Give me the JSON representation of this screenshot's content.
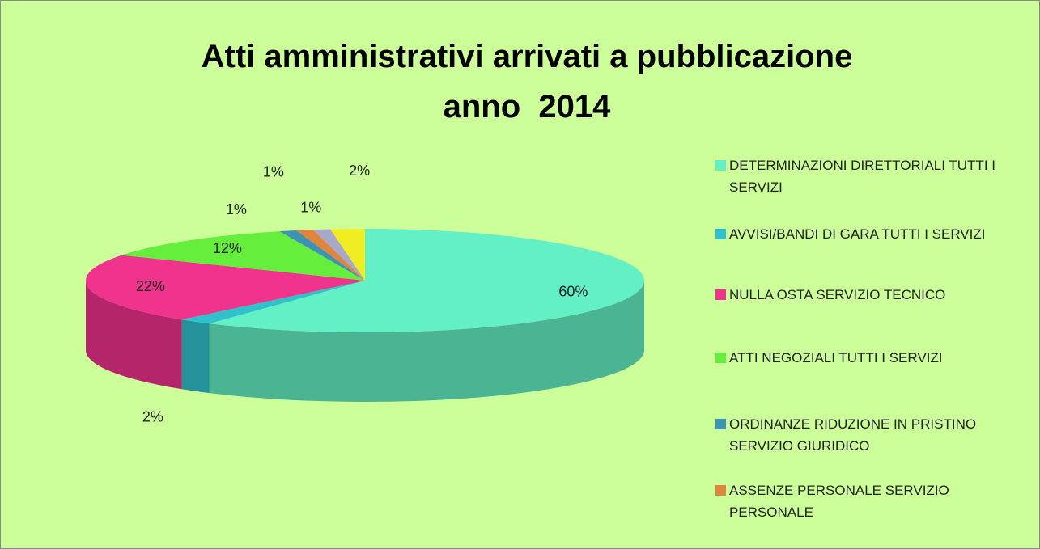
{
  "chart_data": {
    "type": "pie",
    "title": "Atti amministrativi arrivati a pubblicazione\nanno  2014",
    "categories": [
      "DETERMINAZIONI DIRETTORIALI TUTTI I SERVIZI",
      "AVVISI/BANDI DI GARA TUTTI I SERVIZI",
      "NULLA OSTA SERVIZIO TECNICO",
      "ATTI NEGOZIALI TUTTI I SERVIZI",
      "ORDINANZE  RIDUZIONE IN PRISTINO SERVIZIO GIURIDICO",
      "ASSENZE PERSONALE SERVIZIO PERSONALE",
      null,
      null
    ],
    "values": [
      60,
      2,
      22,
      12,
      1,
      1,
      1,
      2
    ],
    "value_labels": [
      "60%",
      "2%",
      "22%",
      "12%",
      "1%",
      "1%",
      "1%",
      "2%"
    ],
    "colors": [
      "#62f0c4",
      "#2fc2cc",
      "#f0338c",
      "#66ee3c",
      "#3e92b4",
      "#e0843e",
      "#a8a8c8",
      "#f0ee22"
    ],
    "legend": "right"
  }
}
